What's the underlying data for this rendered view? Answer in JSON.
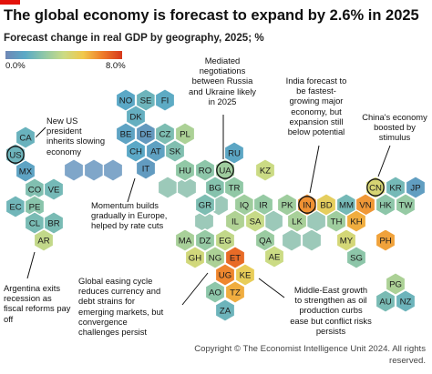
{
  "title": "The global economy is forecast to expand by 2.6% in 2025",
  "subtitle": "Forecast change in real GDP by geography, 2025; %",
  "legend": {
    "min_label": "0.0%",
    "max_label": "8.0%"
  },
  "colors": {
    "accent": "#e3120b",
    "scale": [
      "#6f87b6",
      "#5aa9c6",
      "#90c8a7",
      "#cbdb84",
      "#f1c84b",
      "#ee7c2a",
      "#d6381c"
    ]
  },
  "annotations": {
    "us": [
      "New US",
      "president",
      "inherits slowing",
      "economy"
    ],
    "russia": [
      "Mediated",
      "negotiations",
      "between Russia",
      "and Ukraine likely",
      "in 2025"
    ],
    "india": [
      "India forecast to",
      "be fastest-",
      "growing major",
      "economy, but",
      "expansion still",
      "below potential"
    ],
    "china": [
      "China's economy",
      "boosted by",
      "stimulus"
    ],
    "europe": [
      "Momentum builds",
      "gradually in Europe,",
      "helped by rate cuts"
    ],
    "argentina": [
      "Argentina exits",
      "recession as",
      "fiscal reforms pay",
      "off"
    ],
    "easing": [
      "Global easing cycle",
      "reduces currency and",
      "debt strains for",
      "emerging markets, but",
      "convergence",
      "challenges persist"
    ],
    "mideast": [
      "Middle-East growth",
      "to strengthen as oil",
      "production curbs",
      "ease but conflict risks",
      "persists"
    ]
  },
  "footer": [
    "Copyright © The Economist Intelligence Unit 2024. All rights",
    "reserved."
  ],
  "chart_data": {
    "type": "heatmap",
    "title": "The global economy is forecast to expand by 2.6% in 2025",
    "subtitle": "Forecast change in real GDP by geography, 2025; %",
    "scale": {
      "min": 0.0,
      "max": 8.0
    },
    "highlighted": [
      "US",
      "UA",
      "IN",
      "CN"
    ],
    "cells": [
      {
        "label": "CA",
        "value": 1.7
      },
      {
        "label": "US",
        "value": 1.8
      },
      {
        "label": "MX",
        "value": 1.1
      },
      {
        "label": "CO",
        "value": 2.3
      },
      {
        "label": "VE",
        "value": 2.0
      },
      {
        "label": "EC",
        "value": 1.9
      },
      {
        "label": "PE",
        "value": 2.5
      },
      {
        "label": "CL",
        "value": 2.1
      },
      {
        "label": "BR",
        "value": 2.1
      },
      {
        "label": "AR",
        "value": 3.8
      },
      {
        "label": "NO",
        "value": 1.3
      },
      {
        "label": "SE",
        "value": 1.8
      },
      {
        "label": "FI",
        "value": 1.4
      },
      {
        "label": "DK",
        "value": 1.6
      },
      {
        "label": "BE",
        "value": 1.1
      },
      {
        "label": "DE",
        "value": 0.7
      },
      {
        "label": "CZ",
        "value": 2.2
      },
      {
        "label": "PL",
        "value": 3.3
      },
      {
        "label": "CH",
        "value": 1.3
      },
      {
        "label": "AT",
        "value": 1.0
      },
      {
        "label": "SK",
        "value": 2.3
      },
      {
        "label": "IT",
        "value": 0.8
      },
      {
        "label": "HU",
        "value": 2.7
      },
      {
        "label": "RO",
        "value": 2.6
      },
      {
        "label": "RU",
        "value": 1.2
      },
      {
        "label": "UA",
        "value": 3.0
      },
      {
        "label": "KZ",
        "value": 4.0
      },
      {
        "label": "BG",
        "value": 2.4
      },
      {
        "label": "TR",
        "value": 2.7
      },
      {
        "label": "GR",
        "value": 2.2
      },
      {
        "label": "IQ",
        "value": 3.0
      },
      {
        "label": "IR",
        "value": 2.8
      },
      {
        "label": "PK",
        "value": 3.0
      },
      {
        "label": "IN",
        "value": 6.3
      },
      {
        "label": "BD",
        "value": 4.9
      },
      {
        "label": "MM",
        "value": 2.0
      },
      {
        "label": "VN",
        "value": 6.2
      },
      {
        "label": "CN",
        "value": 4.4
      },
      {
        "label": "KR",
        "value": 2.0
      },
      {
        "label": "JP",
        "value": 0.9
      },
      {
        "label": "HK",
        "value": 2.6
      },
      {
        "label": "TW",
        "value": 2.8
      },
      {
        "label": "IL",
        "value": 3.4
      },
      {
        "label": "SA",
        "value": 3.9
      },
      {
        "label": "LK",
        "value": 3.2
      },
      {
        "label": "TH",
        "value": 3.0
      },
      {
        "label": "KH",
        "value": 5.8
      },
      {
        "label": "PH",
        "value": 6.0
      },
      {
        "label": "MY",
        "value": 4.3
      },
      {
        "label": "SG",
        "value": 2.6
      },
      {
        "label": "QA",
        "value": 2.9
      },
      {
        "label": "AE",
        "value": 4.0
      },
      {
        "label": "MA",
        "value": 3.2
      },
      {
        "label": "DZ",
        "value": 2.8
      },
      {
        "label": "EG",
        "value": 3.8
      },
      {
        "label": "GH",
        "value": 4.2
      },
      {
        "label": "NG",
        "value": 3.3
      },
      {
        "label": "ET",
        "value": 7.0
      },
      {
        "label": "UG",
        "value": 6.5
      },
      {
        "label": "KE",
        "value": 5.0
      },
      {
        "label": "AO",
        "value": 2.6
      },
      {
        "label": "TZ",
        "value": 5.8
      },
      {
        "label": "ZA",
        "value": 1.8
      },
      {
        "label": "PG",
        "value": 3.3
      },
      {
        "label": "AU",
        "value": 2.1
      },
      {
        "label": "NZ",
        "value": 1.8
      }
    ]
  }
}
